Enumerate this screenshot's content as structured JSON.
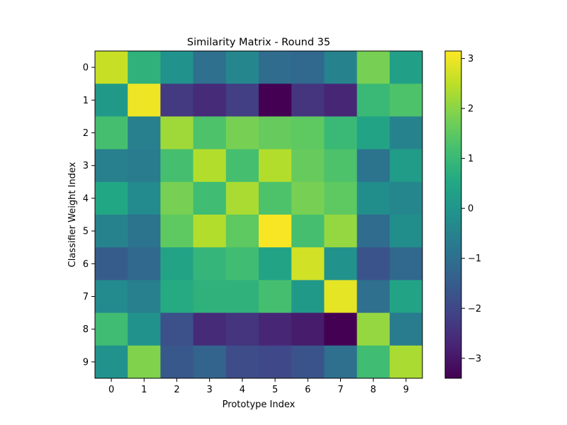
{
  "chart_data": {
    "type": "heatmap",
    "title": "Similarity Matrix - Round 35",
    "xlabel": "Prototype Index",
    "ylabel": "Classifier Weight Index",
    "x_categories": [
      "0",
      "1",
      "2",
      "3",
      "4",
      "5",
      "6",
      "7",
      "8",
      "9"
    ],
    "y_categories": [
      "0",
      "1",
      "2",
      "3",
      "4",
      "5",
      "6",
      "7",
      "8",
      "9"
    ],
    "values": [
      [
        2.6,
        0.8,
        -0.1,
        -1.0,
        -0.4,
        -1.1,
        -1.2,
        -0.5,
        1.8,
        0.3
      ],
      [
        0.1,
        3.0,
        -2.3,
        -2.6,
        -2.2,
        -3.4,
        -2.4,
        -2.7,
        1.0,
        1.3
      ],
      [
        1.2,
        -0.6,
        2.2,
        1.3,
        1.8,
        1.6,
        1.5,
        1.0,
        0.4,
        -0.5
      ],
      [
        -0.6,
        -0.7,
        1.2,
        2.4,
        1.2,
        2.4,
        1.6,
        1.3,
        -0.9,
        0.2
      ],
      [
        0.5,
        -0.3,
        1.8,
        1.1,
        2.3,
        1.3,
        1.8,
        1.5,
        -0.2,
        -0.4
      ],
      [
        -0.5,
        -0.9,
        1.5,
        2.4,
        1.5,
        3.1,
        1.2,
        2.1,
        -1.1,
        -0.2
      ],
      [
        -1.5,
        -1.2,
        0.4,
        0.9,
        1.1,
        0.4,
        2.7,
        -0.1,
        -1.7,
        -1.2
      ],
      [
        -0.3,
        -0.6,
        0.6,
        0.8,
        0.8,
        1.2,
        0.1,
        2.9,
        -1.0,
        0.4
      ],
      [
        1.1,
        -0.1,
        -1.8,
        -2.6,
        -2.4,
        -2.7,
        -2.9,
        -3.4,
        2.1,
        -0.7
      ],
      [
        -0.1,
        1.9,
        -1.6,
        -1.3,
        -1.9,
        -2.0,
        -1.7,
        -1.0,
        1.1,
        2.3
      ]
    ],
    "colormap": "viridis",
    "colorbar": {
      "min": -3.4,
      "max": 3.15,
      "ticks": [
        3,
        2,
        1,
        0,
        -1,
        -2,
        -3
      ],
      "tick_labels": [
        "3",
        "2",
        "1",
        "0",
        "−1",
        "−2",
        "−3"
      ]
    }
  }
}
